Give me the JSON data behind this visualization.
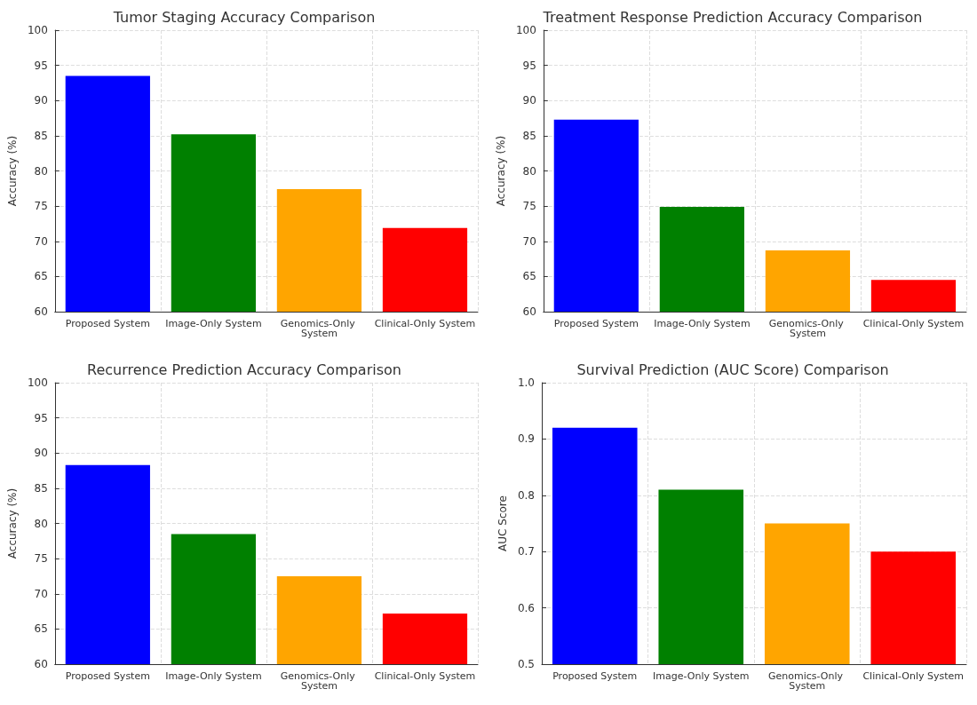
{
  "chart_data": [
    {
      "type": "bar",
      "title": "Tumor Staging Accuracy Comparison",
      "ylabel": "Accuracy (%)",
      "categories": [
        "Proposed System",
        "Image-Only System",
        "Genomics-Only System",
        "Clinical-Only System"
      ],
      "values": [
        93.5,
        85.2,
        77.4,
        71.9
      ],
      "colors": [
        "#0000ff",
        "#008000",
        "#ffa500",
        "#ff0000"
      ],
      "ylim": [
        60,
        100
      ],
      "yticks": [
        60,
        65,
        70,
        75,
        80,
        85,
        90,
        95,
        100
      ],
      "grid": true
    },
    {
      "type": "bar",
      "title": "Treatment Response Prediction Accuracy Comparison",
      "ylabel": "Accuracy (%)",
      "categories": [
        "Proposed System",
        "Image-Only System",
        "Genomics-Only System",
        "Clinical-Only System"
      ],
      "values": [
        87.3,
        74.9,
        68.7,
        64.5
      ],
      "colors": [
        "#0000ff",
        "#008000",
        "#ffa500",
        "#ff0000"
      ],
      "ylim": [
        60,
        100
      ],
      "yticks": [
        60,
        65,
        70,
        75,
        80,
        85,
        90,
        95,
        100
      ],
      "grid": true
    },
    {
      "type": "bar",
      "title": "Recurrence Prediction Accuracy Comparison",
      "ylabel": "Accuracy (%)",
      "categories": [
        "Proposed System",
        "Image-Only System",
        "Genomics-Only System",
        "Clinical-Only System"
      ],
      "values": [
        88.3,
        78.5,
        72.5,
        67.2
      ],
      "colors": [
        "#0000ff",
        "#008000",
        "#ffa500",
        "#ff0000"
      ],
      "ylim": [
        60,
        100
      ],
      "yticks": [
        60,
        65,
        70,
        75,
        80,
        85,
        90,
        95,
        100
      ],
      "grid": true
    },
    {
      "type": "bar",
      "title": "Survival Prediction (AUC Score) Comparison",
      "ylabel": "AUC Score",
      "categories": [
        "Proposed System",
        "Image-Only System",
        "Genomics-Only System",
        "Clinical-Only System"
      ],
      "values": [
        0.92,
        0.81,
        0.75,
        0.7
      ],
      "colors": [
        "#0000ff",
        "#008000",
        "#ffa500",
        "#ff0000"
      ],
      "ylim": [
        0.5,
        1.0
      ],
      "yticks": [
        {
          "value": 0.5,
          "label": "0.5"
        },
        {
          "value": 0.6,
          "label": "0.6"
        },
        {
          "value": 0.7,
          "label": "0.7"
        },
        {
          "value": 0.8,
          "label": "0.8"
        },
        {
          "value": 0.9,
          "label": "0.9"
        },
        {
          "value": 1.0,
          "label": "1.0"
        }
      ],
      "grid": true
    }
  ]
}
